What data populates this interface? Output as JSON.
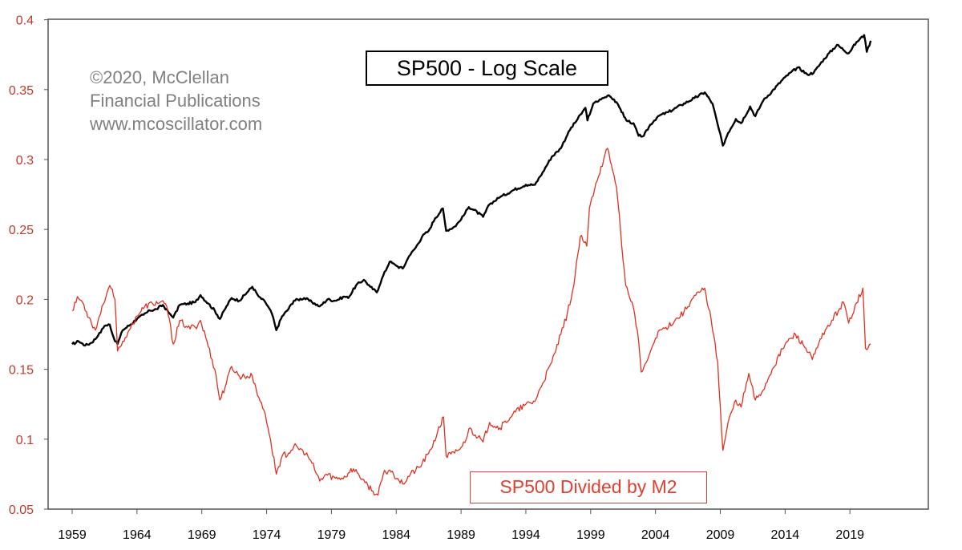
{
  "colors": {
    "black_series": "#000000",
    "red_series": "#e03020",
    "y_tick_label": "#c0392b",
    "copyright_text": "#808080",
    "frame": "#555555"
  },
  "annotation": {
    "line1": "©2020, McClellan",
    "line2": "Financial Publications",
    "line3": "www.mcoscillator.com"
  },
  "chart_data": {
    "type": "line",
    "title": "SP500 - Log Scale",
    "xlabel": "",
    "ylabel": "",
    "x_ticks": [
      "1959",
      "1964",
      "1969",
      "1974",
      "1979",
      "1984",
      "1989",
      "1994",
      "1999",
      "2004",
      "2009",
      "2014",
      "2019"
    ],
    "y_ticks": [
      "0.4",
      "0.35",
      "0.3",
      "0.25",
      "0.2",
      "0.15",
      "0.1",
      "0.05"
    ],
    "xlim": [
      1957.5,
      2022.5
    ],
    "ylim": [
      0.05,
      0.4
    ],
    "grid": false,
    "series": [
      {
        "name": "",
        "axis": "unlabeled log-scale overlay",
        "color": "#000000",
        "points": [
          [
            1959.0,
            0.168
          ],
          [
            1959.5,
            0.17
          ],
          [
            1960.0,
            0.167
          ],
          [
            1960.5,
            0.169
          ],
          [
            1961.0,
            0.174
          ],
          [
            1961.5,
            0.181
          ],
          [
            1961.9,
            0.182
          ],
          [
            1962.3,
            0.17
          ],
          [
            1962.5,
            0.168
          ],
          [
            1962.9,
            0.178
          ],
          [
            1963.5,
            0.182
          ],
          [
            1964.0,
            0.186
          ],
          [
            1964.5,
            0.189
          ],
          [
            1965.0,
            0.192
          ],
          [
            1965.5,
            0.193
          ],
          [
            1966.0,
            0.196
          ],
          [
            1966.5,
            0.19
          ],
          [
            1966.8,
            0.187
          ],
          [
            1967.3,
            0.196
          ],
          [
            1967.9,
            0.197
          ],
          [
            1968.5,
            0.198
          ],
          [
            1968.9,
            0.203
          ],
          [
            1969.5,
            0.197
          ],
          [
            1970.0,
            0.192
          ],
          [
            1970.4,
            0.186
          ],
          [
            1970.9,
            0.195
          ],
          [
            1971.3,
            0.201
          ],
          [
            1971.9,
            0.199
          ],
          [
            1972.5,
            0.205
          ],
          [
            1972.9,
            0.209
          ],
          [
            1973.4,
            0.202
          ],
          [
            1973.9,
            0.198
          ],
          [
            1974.4,
            0.19
          ],
          [
            1974.75,
            0.178
          ],
          [
            1975.2,
            0.188
          ],
          [
            1975.6,
            0.192
          ],
          [
            1976.1,
            0.199
          ],
          [
            1976.9,
            0.201
          ],
          [
            1977.5,
            0.198
          ],
          [
            1978.1,
            0.195
          ],
          [
            1978.7,
            0.2
          ],
          [
            1979.3,
            0.199
          ],
          [
            1980.0,
            0.202
          ],
          [
            1980.3,
            0.201
          ],
          [
            1980.9,
            0.21
          ],
          [
            1981.5,
            0.214
          ],
          [
            1982.0,
            0.209
          ],
          [
            1982.5,
            0.205
          ],
          [
            1982.9,
            0.215
          ],
          [
            1983.5,
            0.227
          ],
          [
            1984.0,
            0.224
          ],
          [
            1984.5,
            0.222
          ],
          [
            1985.0,
            0.231
          ],
          [
            1985.5,
            0.237
          ],
          [
            1986.0,
            0.245
          ],
          [
            1986.5,
            0.249
          ],
          [
            1987.0,
            0.258
          ],
          [
            1987.6,
            0.265
          ],
          [
            1987.85,
            0.249
          ],
          [
            1988.5,
            0.252
          ],
          [
            1989.0,
            0.257
          ],
          [
            1989.6,
            0.266
          ],
          [
            1990.0,
            0.264
          ],
          [
            1990.7,
            0.259
          ],
          [
            1991.2,
            0.268
          ],
          [
            1992.0,
            0.273
          ],
          [
            1993.0,
            0.278
          ],
          [
            1994.0,
            0.282
          ],
          [
            1994.7,
            0.282
          ],
          [
            1995.3,
            0.291
          ],
          [
            1996.0,
            0.302
          ],
          [
            1996.7,
            0.308
          ],
          [
            1997.3,
            0.32
          ],
          [
            1998.0,
            0.329
          ],
          [
            1998.6,
            0.337
          ],
          [
            1998.75,
            0.328
          ],
          [
            1999.2,
            0.34
          ],
          [
            1999.8,
            0.343
          ],
          [
            2000.4,
            0.346
          ],
          [
            2000.8,
            0.343
          ],
          [
            2001.3,
            0.336
          ],
          [
            2001.75,
            0.328
          ],
          [
            2002.3,
            0.326
          ],
          [
            2002.7,
            0.317
          ],
          [
            2003.1,
            0.317
          ],
          [
            2003.6,
            0.325
          ],
          [
            2004.2,
            0.331
          ],
          [
            2005.0,
            0.334
          ],
          [
            2006.0,
            0.339
          ],
          [
            2007.0,
            0.344
          ],
          [
            2007.8,
            0.348
          ],
          [
            2008.4,
            0.34
          ],
          [
            2008.8,
            0.325
          ],
          [
            2009.2,
            0.31
          ],
          [
            2009.6,
            0.319
          ],
          [
            2010.2,
            0.329
          ],
          [
            2010.6,
            0.326
          ],
          [
            2011.3,
            0.338
          ],
          [
            2011.7,
            0.331
          ],
          [
            2012.3,
            0.342
          ],
          [
            2013.0,
            0.349
          ],
          [
            2014.0,
            0.359
          ],
          [
            2015.0,
            0.366
          ],
          [
            2015.7,
            0.361
          ],
          [
            2016.2,
            0.362
          ],
          [
            2017.0,
            0.372
          ],
          [
            2018.0,
            0.382
          ],
          [
            2018.9,
            0.376
          ],
          [
            2019.5,
            0.384
          ],
          [
            2020.1,
            0.389
          ],
          [
            2020.3,
            0.377
          ],
          [
            2020.6,
            0.385
          ]
        ]
      },
      {
        "name": "SP500 Divided by M2",
        "axis": "left",
        "color": "#e03020",
        "points": [
          [
            1959.0,
            0.192
          ],
          [
            1959.4,
            0.202
          ],
          [
            1959.8,
            0.198
          ],
          [
            1960.3,
            0.187
          ],
          [
            1960.8,
            0.178
          ],
          [
            1961.3,
            0.195
          ],
          [
            1961.9,
            0.21
          ],
          [
            1962.3,
            0.2
          ],
          [
            1962.5,
            0.163
          ],
          [
            1962.9,
            0.17
          ],
          [
            1963.4,
            0.178
          ],
          [
            1964.0,
            0.188
          ],
          [
            1964.6,
            0.195
          ],
          [
            1965.2,
            0.197
          ],
          [
            1965.8,
            0.198
          ],
          [
            1966.3,
            0.195
          ],
          [
            1966.8,
            0.168
          ],
          [
            1967.3,
            0.185
          ],
          [
            1967.9,
            0.18
          ],
          [
            1968.5,
            0.18
          ],
          [
            1968.9,
            0.185
          ],
          [
            1969.4,
            0.17
          ],
          [
            1970.0,
            0.15
          ],
          [
            1970.4,
            0.128
          ],
          [
            1970.9,
            0.14
          ],
          [
            1971.3,
            0.152
          ],
          [
            1971.9,
            0.145
          ],
          [
            1972.5,
            0.145
          ],
          [
            1972.9,
            0.145
          ],
          [
            1973.4,
            0.13
          ],
          [
            1973.9,
            0.118
          ],
          [
            1974.3,
            0.1
          ],
          [
            1974.75,
            0.075
          ],
          [
            1975.2,
            0.088
          ],
          [
            1975.7,
            0.09
          ],
          [
            1976.1,
            0.095
          ],
          [
            1976.8,
            0.092
          ],
          [
            1977.4,
            0.085
          ],
          [
            1978.1,
            0.07
          ],
          [
            1978.6,
            0.075
          ],
          [
            1979.3,
            0.072
          ],
          [
            1980.1,
            0.073
          ],
          [
            1980.5,
            0.079
          ],
          [
            1981.0,
            0.076
          ],
          [
            1981.6,
            0.069
          ],
          [
            1982.2,
            0.063
          ],
          [
            1982.6,
            0.06
          ],
          [
            1983.0,
            0.075
          ],
          [
            1983.5,
            0.078
          ],
          [
            1984.1,
            0.072
          ],
          [
            1984.5,
            0.068
          ],
          [
            1985.1,
            0.075
          ],
          [
            1985.8,
            0.08
          ],
          [
            1986.5,
            0.09
          ],
          [
            1987.1,
            0.102
          ],
          [
            1987.65,
            0.116
          ],
          [
            1987.85,
            0.088
          ],
          [
            1988.5,
            0.09
          ],
          [
            1989.1,
            0.095
          ],
          [
            1989.7,
            0.108
          ],
          [
            1990.1,
            0.103
          ],
          [
            1990.7,
            0.098
          ],
          [
            1991.2,
            0.112
          ],
          [
            1992.0,
            0.108
          ],
          [
            1993.0,
            0.118
          ],
          [
            1994.0,
            0.125
          ],
          [
            1994.7,
            0.127
          ],
          [
            1995.3,
            0.14
          ],
          [
            1996.0,
            0.155
          ],
          [
            1996.7,
            0.175
          ],
          [
            1997.2,
            0.19
          ],
          [
            1997.7,
            0.21
          ],
          [
            1998.2,
            0.245
          ],
          [
            1998.7,
            0.238
          ],
          [
            1998.9,
            0.265
          ],
          [
            1999.4,
            0.283
          ],
          [
            2000.0,
            0.3
          ],
          [
            2000.3,
            0.308
          ],
          [
            2000.6,
            0.296
          ],
          [
            2001.0,
            0.28
          ],
          [
            2001.3,
            0.25
          ],
          [
            2001.7,
            0.21
          ],
          [
            2002.2,
            0.198
          ],
          [
            2002.6,
            0.178
          ],
          [
            2002.9,
            0.148
          ],
          [
            2003.3,
            0.155
          ],
          [
            2003.7,
            0.165
          ],
          [
            2004.2,
            0.177
          ],
          [
            2004.8,
            0.18
          ],
          [
            2005.5,
            0.185
          ],
          [
            2006.2,
            0.191
          ],
          [
            2006.8,
            0.2
          ],
          [
            2007.4,
            0.205
          ],
          [
            2007.8,
            0.208
          ],
          [
            2008.3,
            0.185
          ],
          [
            2008.8,
            0.155
          ],
          [
            2009.2,
            0.092
          ],
          [
            2009.6,
            0.112
          ],
          [
            2010.2,
            0.128
          ],
          [
            2010.6,
            0.123
          ],
          [
            2011.2,
            0.147
          ],
          [
            2011.7,
            0.128
          ],
          [
            2012.3,
            0.135
          ],
          [
            2013.0,
            0.15
          ],
          [
            2014.0,
            0.168
          ],
          [
            2014.8,
            0.175
          ],
          [
            2015.6,
            0.165
          ],
          [
            2016.1,
            0.157
          ],
          [
            2016.8,
            0.172
          ],
          [
            2017.6,
            0.185
          ],
          [
            2018.5,
            0.198
          ],
          [
            2018.9,
            0.183
          ],
          [
            2019.4,
            0.196
          ],
          [
            2020.0,
            0.208
          ],
          [
            2020.2,
            0.165
          ],
          [
            2020.6,
            0.168
          ]
        ]
      }
    ]
  }
}
